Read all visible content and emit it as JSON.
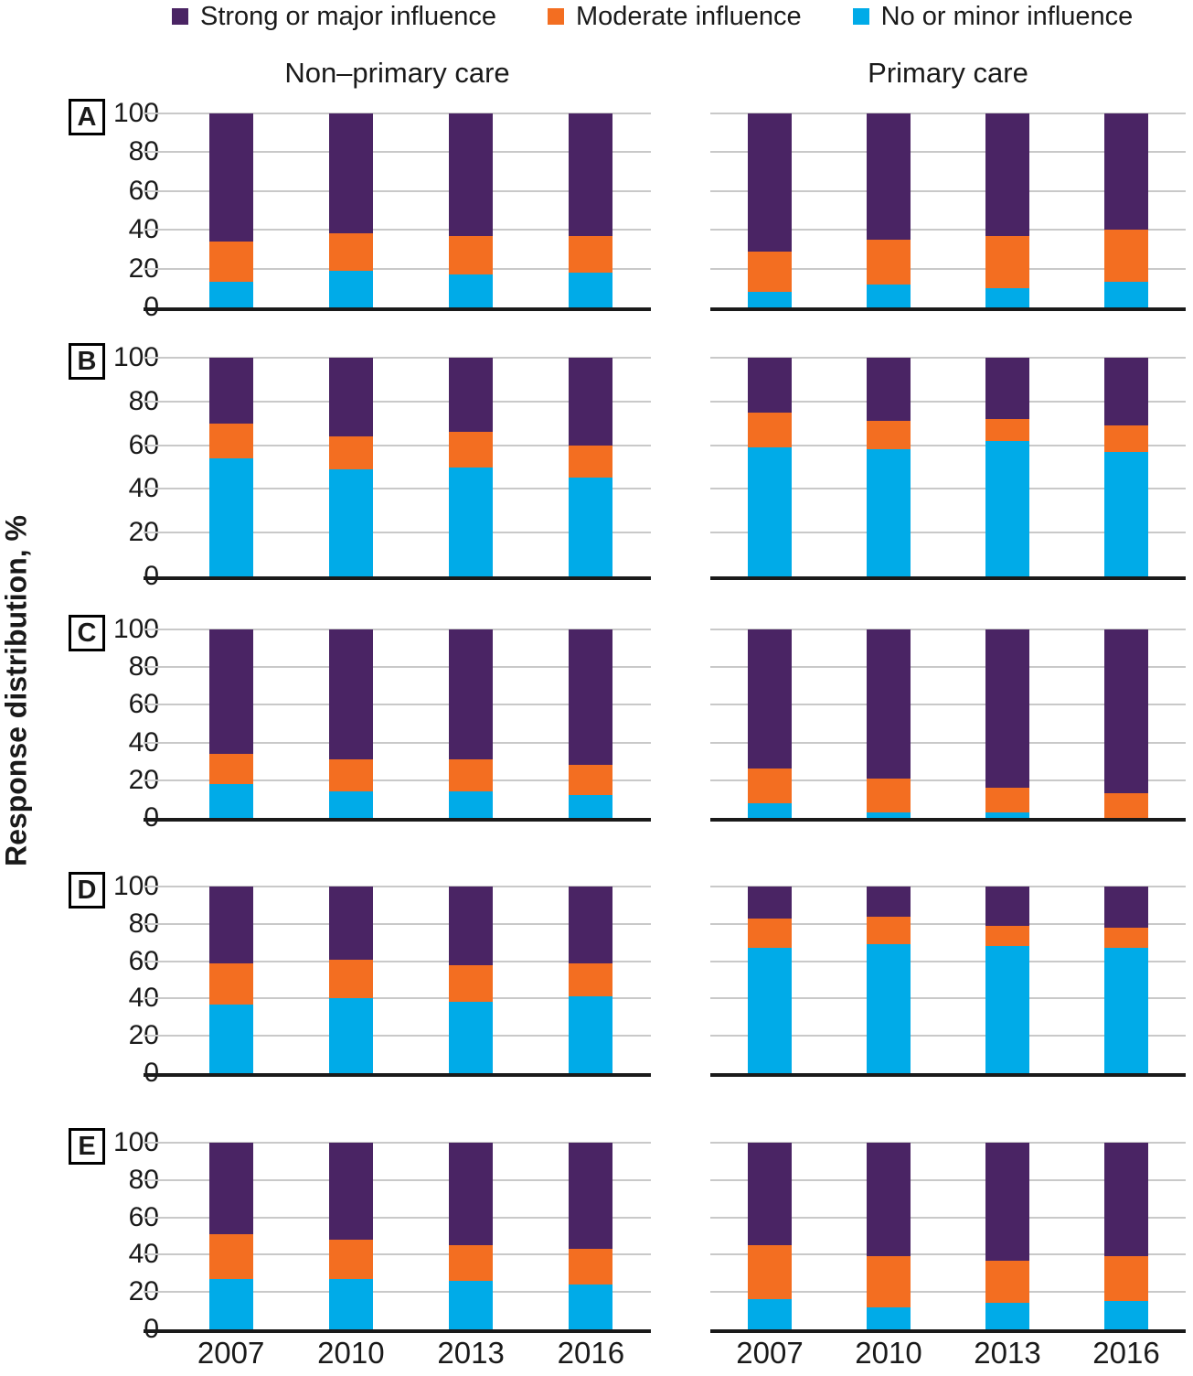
{
  "legend": [
    {
      "label": "Strong or major influence",
      "color": "#4a2464"
    },
    {
      "label": "Moderate influence",
      "color": "#f36e21"
    },
    {
      "label": "No or minor influence",
      "color": "#00abe8"
    }
  ],
  "ylabel": "Response distribution, %",
  "chart_data": {
    "type": "bar",
    "stacked": true,
    "orientation": "vertical",
    "categories": [
      "2007",
      "2010",
      "2013",
      "2016"
    ],
    "ylim": [
      0,
      100
    ],
    "yticks": [
      0,
      20,
      40,
      60,
      80,
      100
    ],
    "grid": true,
    "ylabel": "Response distribution, %",
    "column_titles": [
      "Non–primary care",
      "Primary care"
    ],
    "series_order_bottom_to_top": [
      "No or minor influence",
      "Moderate influence",
      "Strong or major influence"
    ],
    "rows": [
      {
        "panel": "A",
        "panels": [
          {
            "column": "Non–primary care",
            "series": [
              {
                "name": "No or minor influence",
                "values": [
                  13,
                  19,
                  17,
                  18
                ]
              },
              {
                "name": "Moderate influence",
                "values": [
                  21,
                  19,
                  20,
                  19
                ]
              },
              {
                "name": "Strong or major influence",
                "values": [
                  66,
                  62,
                  63,
                  63
                ]
              }
            ]
          },
          {
            "column": "Primary care",
            "series": [
              {
                "name": "No or minor influence",
                "values": [
                  8,
                  12,
                  10,
                  13
                ]
              },
              {
                "name": "Moderate influence",
                "values": [
                  21,
                  23,
                  27,
                  27
                ]
              },
              {
                "name": "Strong or major influence",
                "values": [
                  71,
                  65,
                  63,
                  60
                ]
              }
            ]
          }
        ]
      },
      {
        "panel": "B",
        "panels": [
          {
            "column": "Non–primary care",
            "series": [
              {
                "name": "No or minor influence",
                "values": [
                  54,
                  49,
                  50,
                  45
                ]
              },
              {
                "name": "Moderate influence",
                "values": [
                  16,
                  15,
                  16,
                  15
                ]
              },
              {
                "name": "Strong or major influence",
                "values": [
                  30,
                  36,
                  34,
                  40
                ]
              }
            ]
          },
          {
            "column": "Primary care",
            "series": [
              {
                "name": "No or minor influence",
                "values": [
                  59,
                  58,
                  62,
                  57
                ]
              },
              {
                "name": "Moderate influence",
                "values": [
                  16,
                  13,
                  10,
                  12
                ]
              },
              {
                "name": "Strong or major influence",
                "values": [
                  25,
                  29,
                  28,
                  31
                ]
              }
            ]
          }
        ]
      },
      {
        "panel": "C",
        "panels": [
          {
            "column": "Non–primary care",
            "series": [
              {
                "name": "No or minor influence",
                "values": [
                  18,
                  14,
                  14,
                  12
                ]
              },
              {
                "name": "Moderate influence",
                "values": [
                  16,
                  17,
                  17,
                  16
                ]
              },
              {
                "name": "Strong or major influence",
                "values": [
                  66,
                  69,
                  69,
                  72
                ]
              }
            ]
          },
          {
            "column": "Primary care",
            "series": [
              {
                "name": "No or minor influence",
                "values": [
                  8,
                  3,
                  3,
                  0
                ]
              },
              {
                "name": "Moderate influence",
                "values": [
                  18,
                  18,
                  13,
                  13
                ]
              },
              {
                "name": "Strong or major influence",
                "values": [
                  74,
                  79,
                  84,
                  87
                ]
              }
            ]
          }
        ]
      },
      {
        "panel": "D",
        "panels": [
          {
            "column": "Non–primary care",
            "series": [
              {
                "name": "No or minor influence",
                "values": [
                  37,
                  40,
                  38,
                  41
                ]
              },
              {
                "name": "Moderate influence",
                "values": [
                  22,
                  21,
                  20,
                  18
                ]
              },
              {
                "name": "Strong or major influence",
                "values": [
                  41,
                  39,
                  42,
                  41
                ]
              }
            ]
          },
          {
            "column": "Primary care",
            "series": [
              {
                "name": "No or minor influence",
                "values": [
                  67,
                  69,
                  68,
                  67
                ]
              },
              {
                "name": "Moderate influence",
                "values": [
                  16,
                  15,
                  11,
                  11
                ]
              },
              {
                "name": "Strong or major influence",
                "values": [
                  17,
                  16,
                  21,
                  22
                ]
              }
            ]
          }
        ]
      },
      {
        "panel": "E",
        "panels": [
          {
            "column": "Non–primary care",
            "series": [
              {
                "name": "No or minor influence",
                "values": [
                  27,
                  27,
                  26,
                  24
                ]
              },
              {
                "name": "Moderate influence",
                "values": [
                  24,
                  21,
                  19,
                  19
                ]
              },
              {
                "name": "Strong or major influence",
                "values": [
                  49,
                  52,
                  55,
                  57
                ]
              }
            ]
          },
          {
            "column": "Primary care",
            "series": [
              {
                "name": "No or minor influence",
                "values": [
                  16,
                  12,
                  14,
                  15
                ]
              },
              {
                "name": "Moderate influence",
                "values": [
                  29,
                  27,
                  23,
                  24
                ]
              },
              {
                "name": "Strong or major influence",
                "values": [
                  55,
                  61,
                  63,
                  61
                ]
              }
            ]
          }
        ]
      }
    ]
  }
}
